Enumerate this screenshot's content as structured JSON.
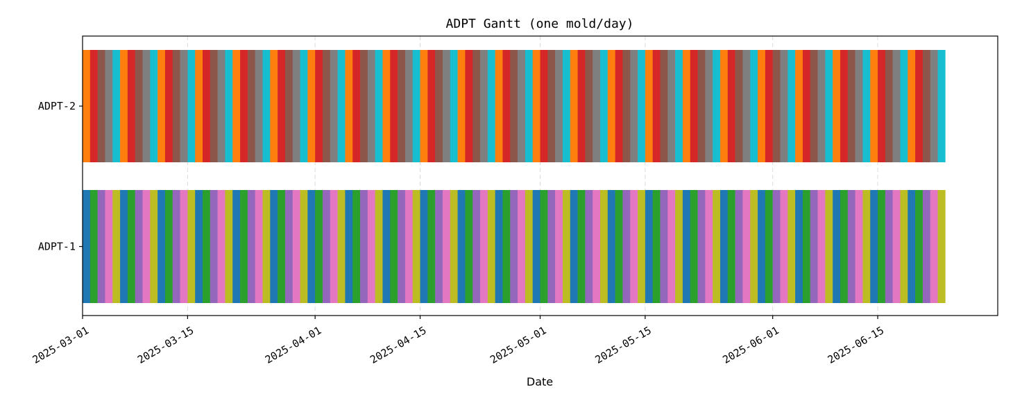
{
  "chart_data": {
    "type": "gantt",
    "title": "ADPT Gantt (one mold/day)",
    "xlabel": "Date",
    "ylabel": "",
    "x_start": "2025-03-01",
    "x_end": "2025-07-01",
    "bars_start": "2025-03-01",
    "bars_end": "2025-06-23",
    "xticks": [
      "2025-03-01",
      "2025-03-15",
      "2025-04-01",
      "2025-04-15",
      "2025-05-01",
      "2025-05-15",
      "2025-06-01",
      "2025-06-15"
    ],
    "rows": [
      {
        "name": "ADPT-2",
        "colors": [
          "#ff7f0e",
          "#d62728",
          "#8c564b",
          "#7f7f7f",
          "#17becf"
        ]
      },
      {
        "name": "ADPT-1",
        "colors": [
          "#1f77b4",
          "#2ca02c",
          "#9467bd",
          "#e377c2",
          "#bcbd22"
        ]
      }
    ],
    "grid": true
  }
}
